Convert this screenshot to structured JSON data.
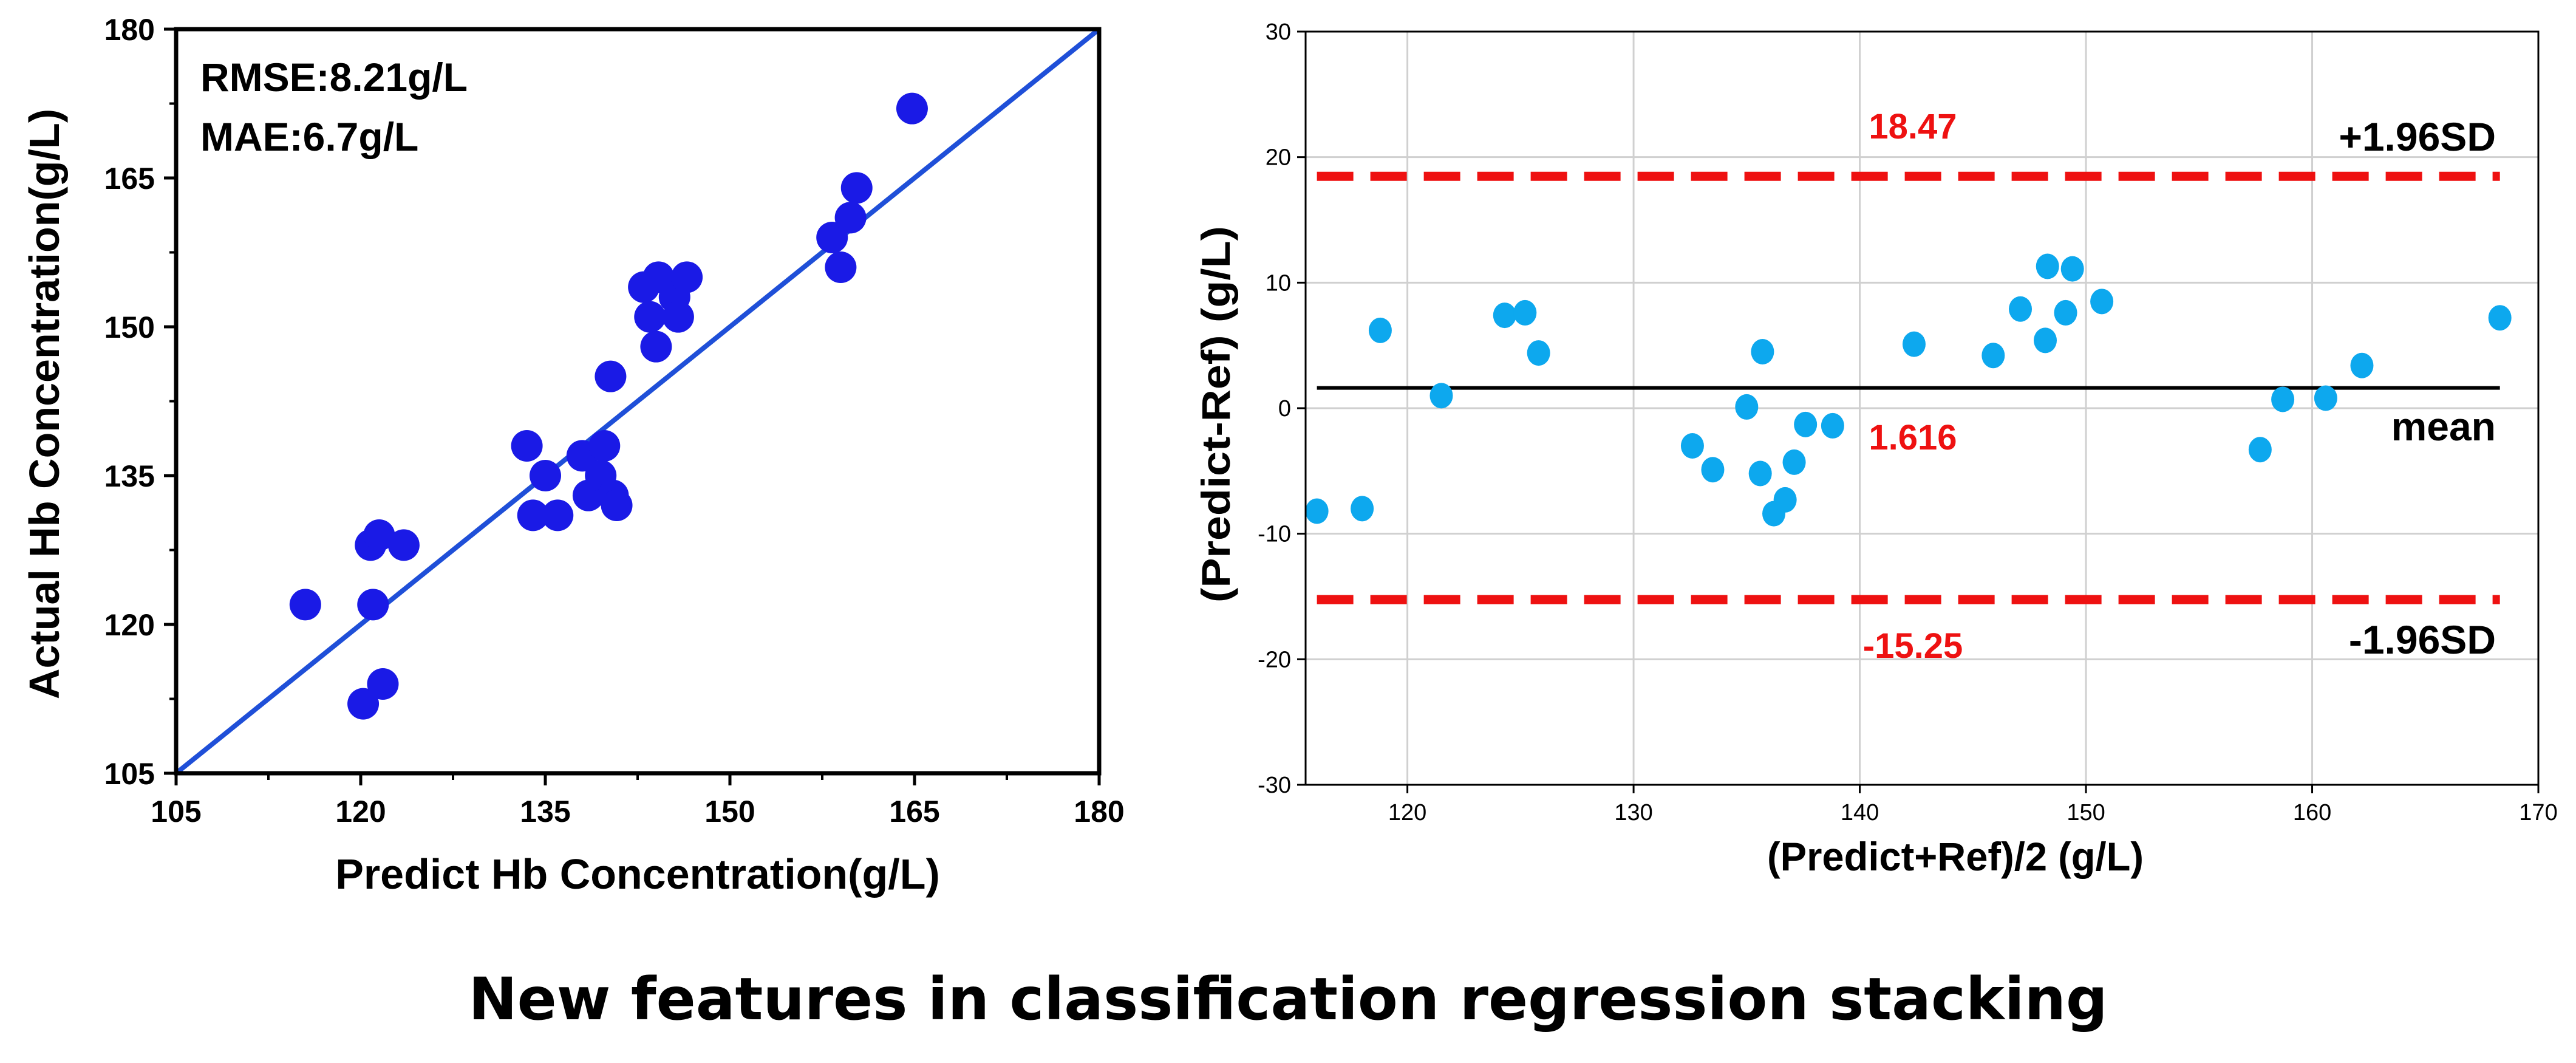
{
  "chart_data": [
    {
      "type": "scatter",
      "title": "",
      "xlabel": "Predict Hb Concentration(g/L)",
      "ylabel": "Actual Hb Concentration(g/L)",
      "xlim": [
        105,
        180
      ],
      "ylim": [
        105,
        180
      ],
      "xticks": [
        105,
        120,
        135,
        150,
        165,
        180
      ],
      "yticks": [
        105,
        120,
        135,
        150,
        165,
        180
      ],
      "grid": false,
      "annotations": [
        "RMSE:8.21g/L",
        "MAE:6.7g/L"
      ],
      "reference_line": {
        "name": "y = x",
        "from": [
          105,
          105
        ],
        "to": [
          180,
          180
        ],
        "color": "#1f4fd8"
      },
      "point_color": "#1a1ae6",
      "series": [
        {
          "name": "samples",
          "points": [
            [
              115.5,
              122
            ],
            [
              120.2,
              112
            ],
            [
              120.8,
              128
            ],
            [
              121.5,
              129
            ],
            [
              121.0,
              122
            ],
            [
              121.8,
              114
            ],
            [
              123.5,
              128
            ],
            [
              133.5,
              138
            ],
            [
              134.0,
              131
            ],
            [
              135.0,
              135
            ],
            [
              136.0,
              131
            ],
            [
              138.0,
              137
            ],
            [
              138.5,
              133
            ],
            [
              139.5,
              135
            ],
            [
              139.8,
              138
            ],
            [
              140.5,
              133
            ],
            [
              140.8,
              132
            ],
            [
              140.3,
              145
            ],
            [
              143.0,
              154
            ],
            [
              143.5,
              151
            ],
            [
              144.2,
              155
            ],
            [
              144.0,
              148
            ],
            [
              145.5,
              153
            ],
            [
              145.8,
              151
            ],
            [
              146.5,
              155
            ],
            [
              158.3,
              159
            ],
            [
              159.0,
              156
            ],
            [
              159.8,
              161
            ],
            [
              160.3,
              164
            ],
            [
              164.8,
              172
            ]
          ]
        }
      ]
    },
    {
      "type": "scatter",
      "title": "",
      "xlabel": "(Predict+Ref)/2 (g/L)",
      "ylabel": "(Predict-Ref) (g/L)",
      "xlim": [
        115.5,
        170
      ],
      "ylim": [
        -30,
        30
      ],
      "xticks": [
        120,
        130,
        140,
        150,
        160,
        170
      ],
      "yticks": [
        -30,
        -20,
        -10,
        0,
        10,
        20,
        30
      ],
      "grid": true,
      "point_color": "#0da8ee",
      "mean": {
        "value": 1.616,
        "label": "1.616",
        "name": "mean"
      },
      "upper_limit": {
        "value": 18.47,
        "label": "18.47",
        "name": "+1.96SD"
      },
      "lower_limit": {
        "value": -15.25,
        "label": "-15.25",
        "name": "-1.96SD"
      },
      "limit_color": "#ee1111",
      "series": [
        {
          "name": "differences",
          "points": [
            [
              116.0,
              -8.2
            ],
            [
              118.0,
              -8.0
            ],
            [
              118.8,
              6.2
            ],
            [
              121.5,
              1.0
            ],
            [
              124.3,
              7.4
            ],
            [
              125.2,
              7.6
            ],
            [
              125.8,
              4.4
            ],
            [
              132.6,
              -3.0
            ],
            [
              133.5,
              -4.9
            ],
            [
              135.0,
              0.1
            ],
            [
              135.7,
              4.5
            ],
            [
              135.6,
              -5.2
            ],
            [
              136.2,
              -8.4
            ],
            [
              136.7,
              -7.3
            ],
            [
              137.1,
              -4.3
            ],
            [
              137.6,
              -1.3
            ],
            [
              138.8,
              -1.4
            ],
            [
              142.4,
              5.1
            ],
            [
              145.9,
              4.2
            ],
            [
              147.1,
              7.9
            ],
            [
              148.2,
              5.4
            ],
            [
              148.3,
              11.3
            ],
            [
              149.1,
              7.6
            ],
            [
              149.4,
              11.1
            ],
            [
              150.7,
              8.5
            ],
            [
              157.7,
              -3.3
            ],
            [
              158.7,
              0.7
            ],
            [
              160.6,
              0.8
            ],
            [
              162.2,
              3.4
            ],
            [
              168.3,
              7.2
            ]
          ]
        }
      ]
    }
  ],
  "caption": "New features in classification regression stacking"
}
